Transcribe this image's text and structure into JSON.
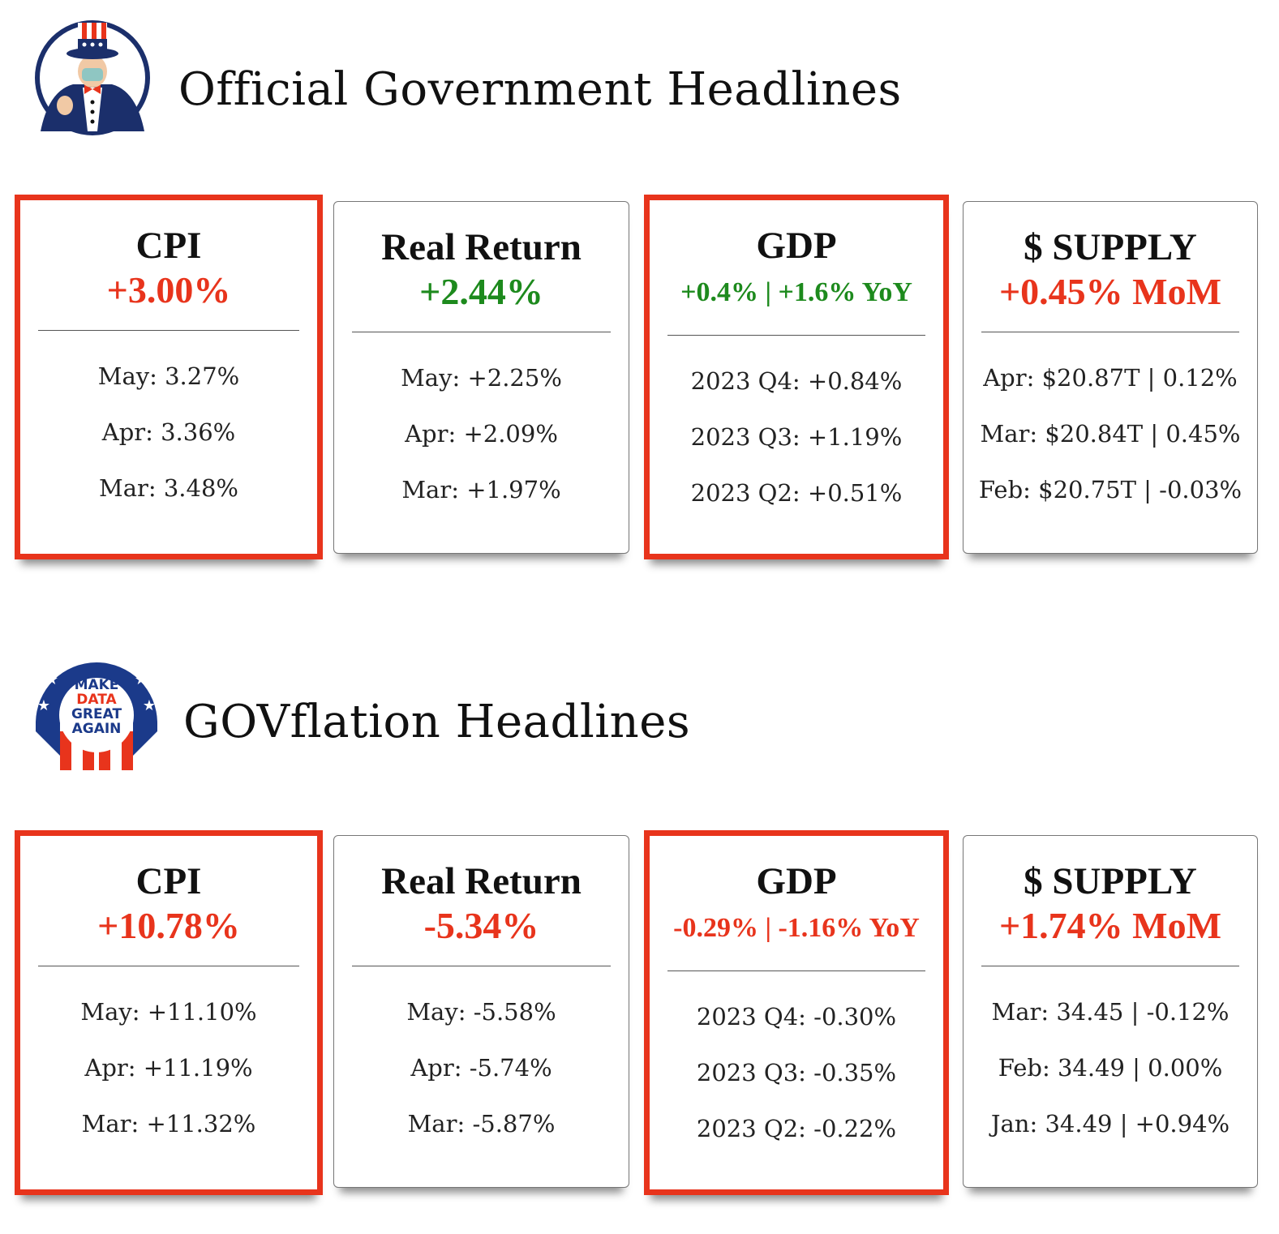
{
  "colors": {
    "red": "#e8341c",
    "green": "#1d8a1d",
    "navy": "#1b2f6b"
  },
  "sections": [
    {
      "title": "Official Government Headlines",
      "logo": "uncle-sam-logo",
      "cards": [
        {
          "title": "CPI",
          "value": "+3.00%",
          "value_color": "red",
          "highlight": true,
          "rows": [
            "May: 3.27%",
            "Apr: 3.36%",
            "Mar: 3.48%"
          ]
        },
        {
          "title": "Real Return",
          "value": "+2.44%",
          "value_color": "green",
          "highlight": false,
          "rows": [
            "May: +2.25%",
            "Apr: +2.09%",
            "Mar: +1.97%"
          ]
        },
        {
          "title": "GDP",
          "value": "+0.4% | +1.6% YoY",
          "value_color": "green",
          "highlight": true,
          "rows": [
            "2023 Q4: +0.84%",
            "2023 Q3: +1.19%",
            "2023 Q2: +0.51%"
          ]
        },
        {
          "title": "$ SUPPLY",
          "value": "+0.45% MoM",
          "value_color": "red",
          "highlight": false,
          "rows": [
            "Apr: $20.87T | 0.12%",
            "Mar: $20.84T | 0.45%",
            "Feb: $20.75T | -0.03%"
          ]
        }
      ]
    },
    {
      "title": "GOVflation Headlines",
      "logo": "make-data-great-again-logo",
      "logo_text": [
        "MAKE",
        "DATA",
        "GREAT",
        "AGAIN"
      ],
      "cards": [
        {
          "title": "CPI",
          "value": "+10.78%",
          "value_color": "red",
          "highlight": true,
          "rows": [
            "May: +11.10%",
            "Apr: +11.19%",
            "Mar: +11.32%"
          ]
        },
        {
          "title": "Real Return",
          "value": "-5.34%",
          "value_color": "red",
          "highlight": false,
          "rows": [
            "May: -5.58%",
            "Apr: -5.74%",
            "Mar: -5.87%"
          ]
        },
        {
          "title": "GDP",
          "value": "-0.29% | -1.16% YoY",
          "value_color": "red",
          "highlight": true,
          "rows": [
            "2023 Q4: -0.30%",
            "2023 Q3: -0.35%",
            "2023 Q2: -0.22%"
          ]
        },
        {
          "title": "$ SUPPLY",
          "value": "+1.74% MoM",
          "value_color": "red",
          "highlight": false,
          "rows": [
            "Mar: 34.45 | -0.12%",
            "Feb: 34.49 | 0.00%",
            "Jan: 34.49 | +0.94%"
          ]
        }
      ]
    }
  ]
}
